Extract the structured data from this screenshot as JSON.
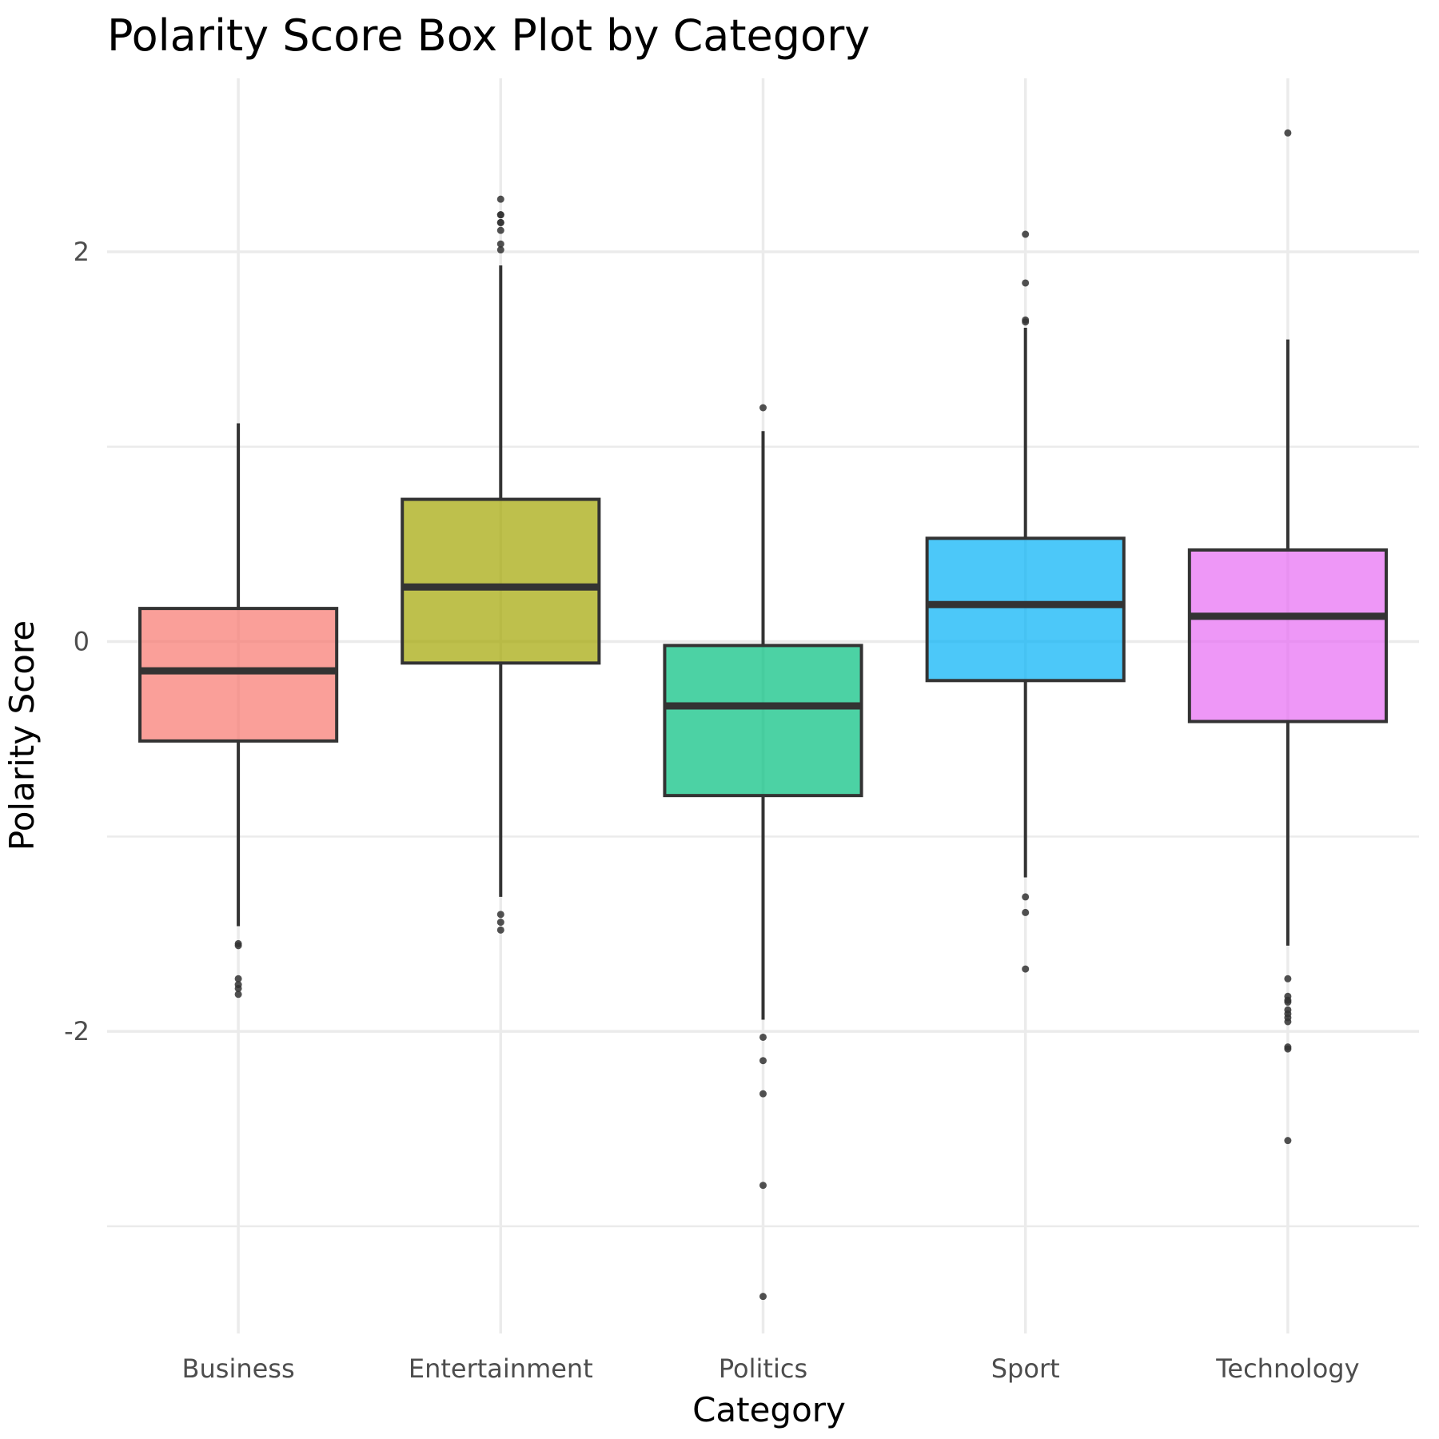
{
  "chart_data": {
    "type": "box",
    "title": "Polarity Score Box Plot by Category",
    "xlabel": "Category",
    "ylabel": "Polarity Score",
    "ylim": [
      -3.55,
      2.89
    ],
    "y_ticks": [
      2,
      0,
      -2
    ],
    "y_tick_labels": [
      "2",
      "0",
      "-2"
    ],
    "grid": true,
    "legend": "none",
    "categories": [
      "Business",
      "Entertainment",
      "Politics",
      "Sport",
      "Technology"
    ],
    "colors": [
      "#F8766D",
      "#A3A500",
      "#00BF7D",
      "#00B0F6",
      "#E76BF3"
    ],
    "boxes": [
      {
        "category": "Business",
        "q1": -0.51,
        "median": -0.15,
        "q3": 0.17,
        "whisker_low": -1.46,
        "whisker_high": 1.12,
        "outliers": [
          -1.55,
          -1.56,
          -1.73,
          -1.76,
          -1.78,
          -1.81
        ]
      },
      {
        "category": "Entertainment",
        "q1": -0.11,
        "median": 0.28,
        "q3": 0.73,
        "whisker_low": -1.31,
        "whisker_high": 1.93,
        "outliers": [
          2.01,
          2.04,
          2.11,
          2.15,
          2.15,
          2.19,
          2.19,
          2.27,
          -1.4,
          -1.44,
          -1.48
        ]
      },
      {
        "category": "Politics",
        "q1": -0.79,
        "median": -0.33,
        "q3": -0.02,
        "whisker_low": -1.94,
        "whisker_high": 1.08,
        "outliers": [
          1.2,
          -2.03,
          -2.15,
          -2.32,
          -2.79,
          -3.36
        ]
      },
      {
        "category": "Sport",
        "q1": -0.2,
        "median": 0.19,
        "q3": 0.53,
        "whisker_low": -1.21,
        "whisker_high": 1.61,
        "outliers": [
          2.09,
          1.84,
          1.65,
          1.64,
          -1.31,
          -1.39,
          -1.68
        ]
      },
      {
        "category": "Technology",
        "q1": -0.41,
        "median": 0.13,
        "q3": 0.47,
        "whisker_low": -1.56,
        "whisker_high": 1.55,
        "outliers": [
          2.61,
          -1.73,
          -1.82,
          -1.84,
          -1.85,
          -1.89,
          -1.91,
          -1.93,
          -1.95,
          -2.08,
          -2.09,
          -2.56
        ]
      }
    ]
  }
}
